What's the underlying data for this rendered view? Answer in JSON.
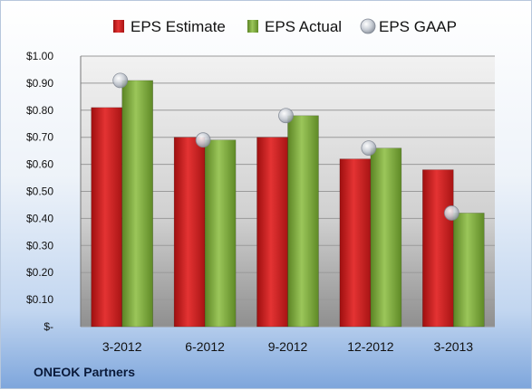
{
  "company": "ONEOK Partners",
  "chart_data": {
    "type": "bar",
    "categories": [
      "3-2012",
      "6-2012",
      "9-2012",
      "12-2012",
      "3-2013"
    ],
    "series": [
      {
        "name": "EPS Estimate",
        "type": "bar",
        "color": "#cc1f1f",
        "values": [
          0.81,
          0.7,
          0.7,
          0.62,
          0.58
        ]
      },
      {
        "name": "EPS Actual",
        "type": "bar",
        "color": "#7aa83a",
        "values": [
          0.91,
          0.69,
          0.78,
          0.66,
          0.42
        ]
      },
      {
        "name": "EPS GAAP",
        "type": "marker",
        "color": "#b8bfc9",
        "values": [
          0.91,
          0.69,
          0.78,
          0.66,
          0.42
        ]
      }
    ],
    "y_ticks": [
      {
        "value": 0.0,
        "label": "$-"
      },
      {
        "value": 0.1,
        "label": "$0.10"
      },
      {
        "value": 0.2,
        "label": "$0.20"
      },
      {
        "value": 0.3,
        "label": "$0.30"
      },
      {
        "value": 0.4,
        "label": "$0.40"
      },
      {
        "value": 0.5,
        "label": "$0.50"
      },
      {
        "value": 0.6,
        "label": "$0.60"
      },
      {
        "value": 0.7,
        "label": "$0.70"
      },
      {
        "value": 0.8,
        "label": "$0.80"
      },
      {
        "value": 0.9,
        "label": "$0.90"
      },
      {
        "value": 1.0,
        "label": "$1.00"
      }
    ],
    "ylim": [
      0,
      1.0
    ],
    "grid": true,
    "legend_position": "top"
  }
}
